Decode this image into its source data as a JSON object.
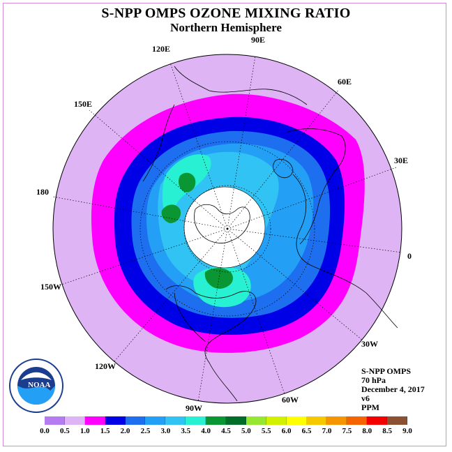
{
  "title": "S-NPP OMPS OZONE MIXING RATIO",
  "subtitle": "Northern Hemisphere",
  "longitudes": [
    "90E",
    "60E",
    "30E",
    "0",
    "30W",
    "60W",
    "90W",
    "120W",
    "150W",
    "180",
    "150E",
    "120E"
  ],
  "info": {
    "instrument": "S-NPP OMPS",
    "level": "70 hPa",
    "date": "December 4, 2017",
    "version": "v6",
    "units": "PPM"
  },
  "logo_text": "NOAA",
  "colorbar": {
    "ticks": [
      "0.0",
      "0.5",
      "1.0",
      "1.5",
      "2.0",
      "2.5",
      "3.0",
      "3.5",
      "4.0",
      "4.5",
      "5.0",
      "5.5",
      "6.0",
      "6.5",
      "7.0",
      "7.5",
      "8.0",
      "8.5",
      "9.0"
    ],
    "colors": [
      "#b57bf0",
      "#deb4f5",
      "#ff00ff",
      "#0000e6",
      "#1e6ff0",
      "#23a0f5",
      "#32c3f5",
      "#28f0d2",
      "#0a9632",
      "#006e28",
      "#96e632",
      "#d2f000",
      "#ffff00",
      "#f5c800",
      "#f59600",
      "#f56400",
      "#f50000",
      "#8c5032"
    ]
  },
  "colors": {
    "background_disk": "#deb4f5",
    "frame": "#d68ad6"
  }
}
